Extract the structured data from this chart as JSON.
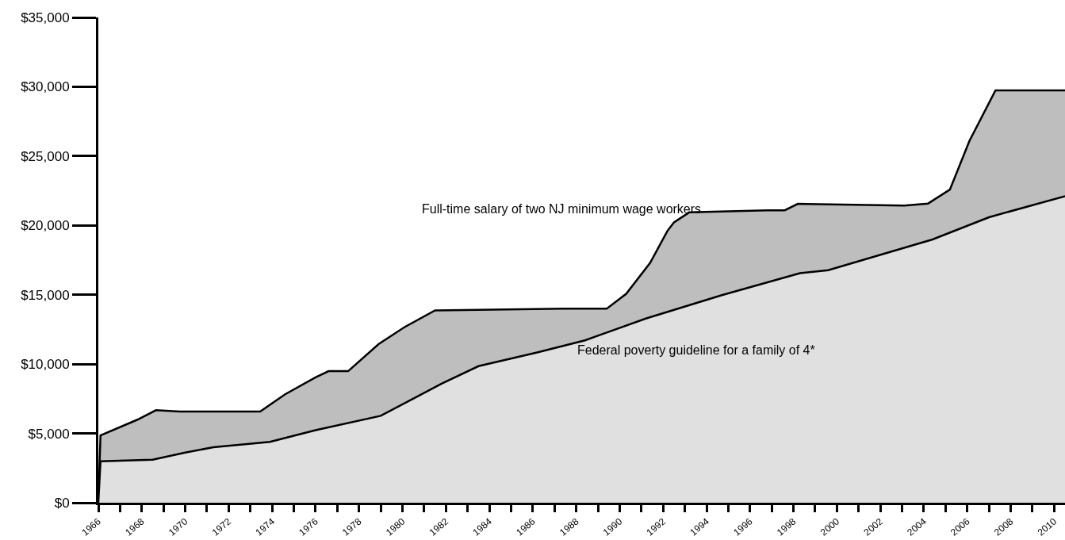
{
  "chart_data": {
    "type": "area",
    "series": [
      {
        "name": "Full-time salary of two NJ minimum wage workers",
        "color": "#bebebe",
        "x": [
          1966,
          1966.1,
          1967.8,
          1968.65,
          1969.75,
          1973.45,
          1974.6,
          1976.0,
          1976.6,
          1977.5,
          1978.9,
          1980.1,
          1981.5,
          1987.4,
          1989.4,
          1990.3,
          1991.4,
          1992.2,
          1992.5,
          1993.2,
          1996.8,
          1997.6,
          1998.2,
          2003.1,
          2004.2,
          2005.2,
          2006.1,
          2007.3,
          2010.5
        ],
        "values": [
          0,
          4860,
          5990,
          6670,
          6580,
          6580,
          7820,
          9040,
          9490,
          9490,
          11440,
          12670,
          13870,
          13990,
          13990,
          15070,
          17300,
          19610,
          20220,
          20940,
          21090,
          21090,
          21560,
          21430,
          21580,
          22580,
          26090,
          29740,
          29740
        ]
      },
      {
        "name": "Federal poverty guideline for a family of 4*",
        "color": "#e0e0e0",
        "x": [
          1966,
          1966.1,
          1968.5,
          1970.0,
          1971.3,
          1973.9,
          1976.0,
          1979.0,
          1981.8,
          1983.5,
          1986.2,
          1988.4,
          1991.2,
          1994.7,
          1998.3,
          1999.6,
          2004.4,
          2007.0,
          2010.5
        ],
        "values": [
          0,
          2990,
          3100,
          3620,
          4000,
          4390,
          5230,
          6270,
          8580,
          9850,
          10840,
          11710,
          13280,
          14970,
          16560,
          16770,
          18990,
          20590,
          22110
        ]
      }
    ],
    "xlim": [
      1966,
      2010.5
    ],
    "xticks": [
      1966,
      {
        "value": 1967,
        "label": null
      },
      1968,
      {
        "value": 1969,
        "label": null
      },
      1970,
      {
        "value": 1971,
        "label": null
      },
      1972,
      {
        "value": 1973,
        "label": null
      },
      1974,
      {
        "value": 1975,
        "label": null
      },
      1976,
      {
        "value": 1977,
        "label": null
      },
      1978,
      {
        "value": 1979,
        "label": null
      },
      1980,
      {
        "value": 1981,
        "label": null
      },
      1982,
      {
        "value": 1983,
        "label": null
      },
      1984,
      {
        "value": 1985,
        "label": null
      },
      1986,
      {
        "value": 1987,
        "label": null
      },
      1988,
      {
        "value": 1989,
        "label": null
      },
      1990,
      {
        "value": 1991,
        "label": null
      },
      1992,
      {
        "value": 1993,
        "label": null
      },
      1994,
      {
        "value": 1995,
        "label": null
      },
      1996,
      {
        "value": 1997,
        "label": null
      },
      1998,
      {
        "value": 1999,
        "label": null
      },
      2000,
      {
        "value": 2001,
        "label": null
      },
      2002,
      {
        "value": 2003,
        "label": null
      },
      2004,
      {
        "value": 2005,
        "label": null
      },
      2006,
      {
        "value": 2007,
        "label": null
      },
      2008,
      {
        "value": 2009,
        "label": null
      },
      2010
    ],
    "ylim": [
      0,
      35000
    ],
    "yticks": [
      {
        "value": 0,
        "label": "$0"
      },
      {
        "value": 5000,
        "label": "$5,000"
      },
      {
        "value": 10000,
        "label": "$10,000"
      },
      {
        "value": 15000,
        "label": "$15,000"
      },
      {
        "value": 20000,
        "label": "$20,000"
      },
      {
        "value": 25000,
        "label": "$25,000"
      },
      {
        "value": 30000,
        "label": "$30,000"
      },
      {
        "value": 35000,
        "label": "$35,000"
      }
    ],
    "grid": false,
    "legend": false,
    "line_style": "solid",
    "marker": "none"
  }
}
